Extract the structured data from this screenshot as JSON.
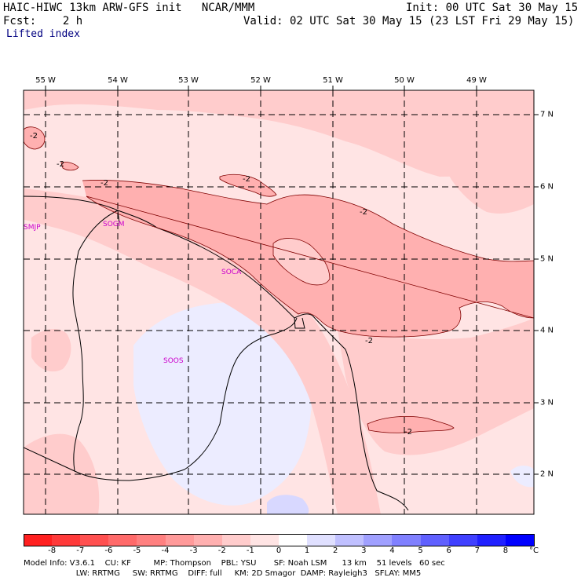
{
  "header": {
    "title_left": "HAIC-HIWC 13km ARW-GFS init   NCAR/MMM",
    "init": "Init: 00 UTC Sat 30 May 15",
    "fcst": "Fcst:    2 h",
    "valid": "Valid: 02 UTC Sat 30 May 15 (23 LST Fri 29 May 15)",
    "field": "Lifted index"
  },
  "map": {
    "lon_labels": [
      "55 W",
      "54 W",
      "53 W",
      "52 W",
      "51 W",
      "50 W",
      "49 W"
    ],
    "lat_labels": [
      "7 N",
      "6 N",
      "5 N",
      "4 N",
      "3 N",
      "2 N"
    ],
    "stations": [
      "SMJP",
      "SOGM",
      "SOCA",
      "SOOS"
    ],
    "contour_labels": [
      "-2",
      "-2",
      "-2",
      "-2",
      "-2",
      "-2",
      "-2"
    ]
  },
  "colorbar": {
    "ticks": [
      "-8",
      "-7",
      "-6",
      "-5",
      "-4",
      "-3",
      "-2",
      "-1",
      "0",
      "1",
      "2",
      "3",
      "4",
      "5",
      "6",
      "7",
      "8"
    ],
    "unit": "°C",
    "colors": [
      "#ff2020",
      "#ff3a3a",
      "#ff5050",
      "#ff6a6a",
      "#ff8080",
      "#ff9a9a",
      "#ffb0b0",
      "#ffcccc",
      "#ffe4e4",
      "#ffffff",
      "#e0e0ff",
      "#c0c0ff",
      "#a0a0ff",
      "#8080ff",
      "#6060ff",
      "#4040ff",
      "#2020ff",
      "#0000ff"
    ]
  },
  "footer": {
    "line1": "Model Info: V3.6.1    CU: KF         MP: Thompson    PBL: YSU       SF: Noah LSM      13 km    51 levels   60 sec",
    "line2": "                     LW: RRTMG     SW: RRTMG    DIFF: full     KM: 2D Smagor  DAMP: Rayleigh3   SFLAY: MM5"
  }
}
